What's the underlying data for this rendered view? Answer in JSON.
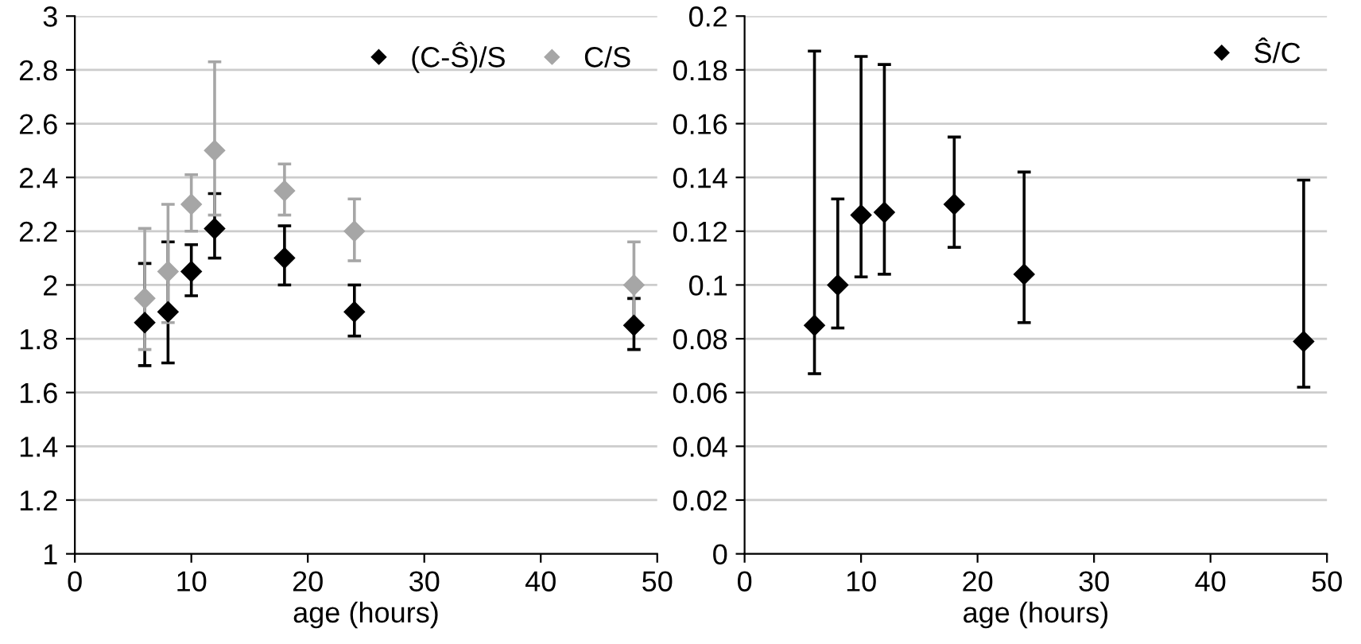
{
  "chart_data": [
    {
      "type": "scatter",
      "xlabel": "age (hours)",
      "x": [
        6,
        8,
        10,
        12,
        18,
        24,
        48
      ],
      "xlim": [
        0,
        50
      ],
      "xticks": [
        0,
        10,
        20,
        30,
        40,
        50
      ],
      "ylim": [
        1,
        3
      ],
      "yticks": [
        1,
        {
          "value": 1.2,
          "label": "1.2"
        },
        {
          "value": 1.4,
          "label": "1.4"
        },
        {
          "value": 1.6,
          "label": "1.6"
        },
        {
          "value": 1.8,
          "label": "1.8"
        },
        2,
        {
          "value": 2.2,
          "label": "2.2"
        },
        {
          "value": 2.4,
          "label": "2.4"
        },
        {
          "value": 2.6,
          "label": "2.6"
        },
        {
          "value": 2.8,
          "label": "2.8"
        },
        3
      ],
      "grid": "y",
      "legend": "top right",
      "marker": "diamond",
      "series": [
        {
          "name": "(C-Ŝ)/S",
          "color": "#000000",
          "values": [
            1.86,
            1.9,
            2.05,
            2.21,
            2.1,
            1.9,
            1.85
          ],
          "errors": [
            [
              1.7,
              2.08
            ],
            [
              1.71,
              2.16
            ],
            [
              1.96,
              2.15
            ],
            [
              2.1,
              2.34
            ],
            [
              2.0,
              2.22
            ],
            [
              1.81,
              2.0
            ],
            [
              1.76,
              1.95
            ]
          ]
        },
        {
          "name": "C/S",
          "color": "#a6a6a6",
          "values": [
            1.95,
            2.05,
            2.3,
            2.5,
            2.35,
            2.2,
            2.0
          ],
          "errors": [
            [
              1.76,
              2.21
            ],
            [
              1.86,
              2.3
            ],
            [
              2.2,
              2.41
            ],
            [
              2.26,
              2.83
            ],
            [
              2.26,
              2.45
            ],
            [
              2.09,
              2.32
            ],
            [
              1.84,
              2.16
            ]
          ]
        }
      ]
    },
    {
      "type": "scatter",
      "xlabel": "age (hours)",
      "x": [
        6,
        8,
        10,
        12,
        18,
        24,
        48
      ],
      "xlim": [
        0,
        50
      ],
      "xticks": [
        0,
        10,
        20,
        30,
        40,
        50
      ],
      "ylim": [
        0,
        0.2
      ],
      "yticks": [
        0,
        {
          "value": 0.02,
          "label": "0.02"
        },
        {
          "value": 0.04,
          "label": "0.04"
        },
        {
          "value": 0.06,
          "label": "0.06"
        },
        {
          "value": 0.08,
          "label": "0.08"
        },
        {
          "value": 0.1,
          "label": "0.1"
        },
        {
          "value": 0.12,
          "label": "0.12"
        },
        {
          "value": 0.14,
          "label": "0.14"
        },
        {
          "value": 0.16,
          "label": "0.16"
        },
        {
          "value": 0.18,
          "label": "0.18"
        },
        {
          "value": 0.2,
          "label": "0.2"
        }
      ],
      "grid": "y",
      "legend": "top right",
      "marker": "diamond",
      "series": [
        {
          "name": "Ŝ/C",
          "color": "#000000",
          "values": [
            0.085,
            0.1,
            0.126,
            0.127,
            0.13,
            0.104,
            0.079
          ],
          "errors": [
            [
              0.067,
              0.187
            ],
            [
              0.084,
              0.132
            ],
            [
              0.103,
              0.185
            ],
            [
              0.104,
              0.182
            ],
            [
              0.114,
              0.155
            ],
            [
              0.086,
              0.142
            ],
            [
              0.062,
              0.139
            ]
          ]
        }
      ]
    }
  ]
}
